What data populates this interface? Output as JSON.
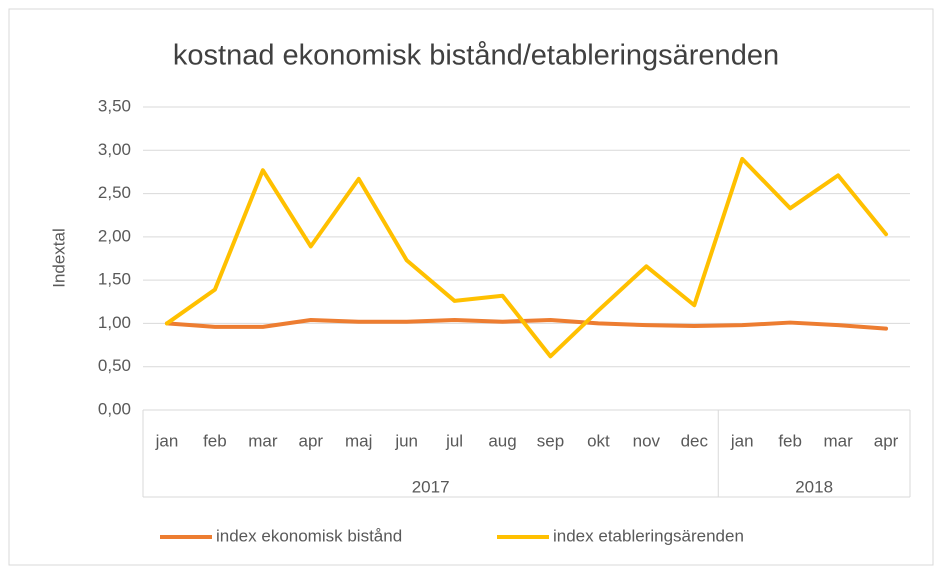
{
  "chart_data": {
    "type": "line",
    "title": "kostnad ekonomisk bistånd/etableringsärenden",
    "y_label": "Indextal",
    "categories": [
      "jan",
      "feb",
      "mar",
      "apr",
      "maj",
      "jun",
      "jul",
      "aug",
      "sep",
      "okt",
      "nov",
      "dec",
      "jan",
      "feb",
      "mar",
      "apr"
    ],
    "category_groups": [
      {
        "label": "2017",
        "span": 12
      },
      {
        "label": "2018",
        "span": 4
      }
    ],
    "series": [
      {
        "name": "index ekonomisk bistånd",
        "color": "#ed7d31",
        "values": [
          1.0,
          0.96,
          0.96,
          1.04,
          1.02,
          1.02,
          1.04,
          1.02,
          1.04,
          1.0,
          0.98,
          0.97,
          0.98,
          1.01,
          0.98,
          0.94
        ]
      },
      {
        "name": "index etableringsärenden",
        "color": "#ffc000",
        "values": [
          1.0,
          1.39,
          2.77,
          1.89,
          2.67,
          1.73,
          1.26,
          1.32,
          0.62,
          1.15,
          1.66,
          1.21,
          2.9,
          2.33,
          2.71,
          2.03
        ]
      }
    ],
    "ylim": [
      0,
      3.5
    ],
    "yticks": [
      {
        "value": 0,
        "label": "0,00"
      },
      {
        "value": 0.5,
        "label": "0,50"
      },
      {
        "value": 1,
        "label": "1,00"
      },
      {
        "value": 1.5,
        "label": "1,50"
      },
      {
        "value": 2,
        "label": "2,00"
      },
      {
        "value": 2.5,
        "label": "2,50"
      },
      {
        "value": 3,
        "label": "3,00"
      },
      {
        "value": 3.5,
        "label": "3,50"
      }
    ],
    "grid": true,
    "legend": "bottom"
  }
}
